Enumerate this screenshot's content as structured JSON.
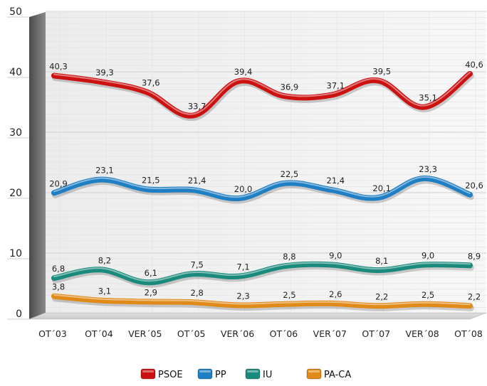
{
  "chart_data": {
    "type": "line",
    "categories": [
      "OT´03",
      "OT´04",
      "VER´05",
      "OT´05",
      "VER´06",
      "OT´06",
      "VER´07",
      "OT´07",
      "VER´08",
      "OT´08"
    ],
    "ylim": [
      0,
      50
    ],
    "yticks": [
      0,
      10,
      20,
      30,
      40,
      50
    ],
    "grid": true,
    "legend_position": "bottom",
    "series": [
      {
        "name": "PSOE",
        "color": "#cc1111",
        "values": [
          40.3,
          39.3,
          37.6,
          33.7,
          39.4,
          36.9,
          37.1,
          39.5,
          35.1,
          40.6
        ],
        "labels": [
          "40,3",
          "39,3",
          "37,6",
          "33,7",
          "39,4",
          "36,9",
          "37,1",
          "39,5",
          "35,1",
          "40,6"
        ]
      },
      {
        "name": "PP",
        "color": "#1f7fc4",
        "values": [
          20.9,
          23.1,
          21.5,
          21.4,
          20.0,
          22.5,
          21.4,
          20.1,
          23.3,
          20.6
        ],
        "labels": [
          "20,9",
          "23,1",
          "21,5",
          "21,4",
          "20,0",
          "22,5",
          "21,4",
          "20,1",
          "23,3",
          "20,6"
        ]
      },
      {
        "name": "IU",
        "color": "#1a8a7d",
        "values": [
          6.8,
          8.2,
          6.1,
          7.5,
          7.1,
          8.8,
          9.0,
          8.1,
          9.0,
          8.9
        ],
        "labels": [
          "6,8",
          "8,2",
          "6,1",
          "7,5",
          "7,1",
          "8,8",
          "9,0",
          "8,1",
          "9,0",
          "8,9"
        ]
      },
      {
        "name": "PA-CA",
        "color": "#e08a1a",
        "values": [
          3.8,
          3.1,
          2.9,
          2.8,
          2.3,
          2.5,
          2.6,
          2.2,
          2.5,
          2.2
        ],
        "labels": [
          "3,8",
          "3,1",
          "2,9",
          "2,8",
          "2,3",
          "2,5",
          "2,6",
          "2,2",
          "2,5",
          "2,2"
        ]
      }
    ]
  }
}
